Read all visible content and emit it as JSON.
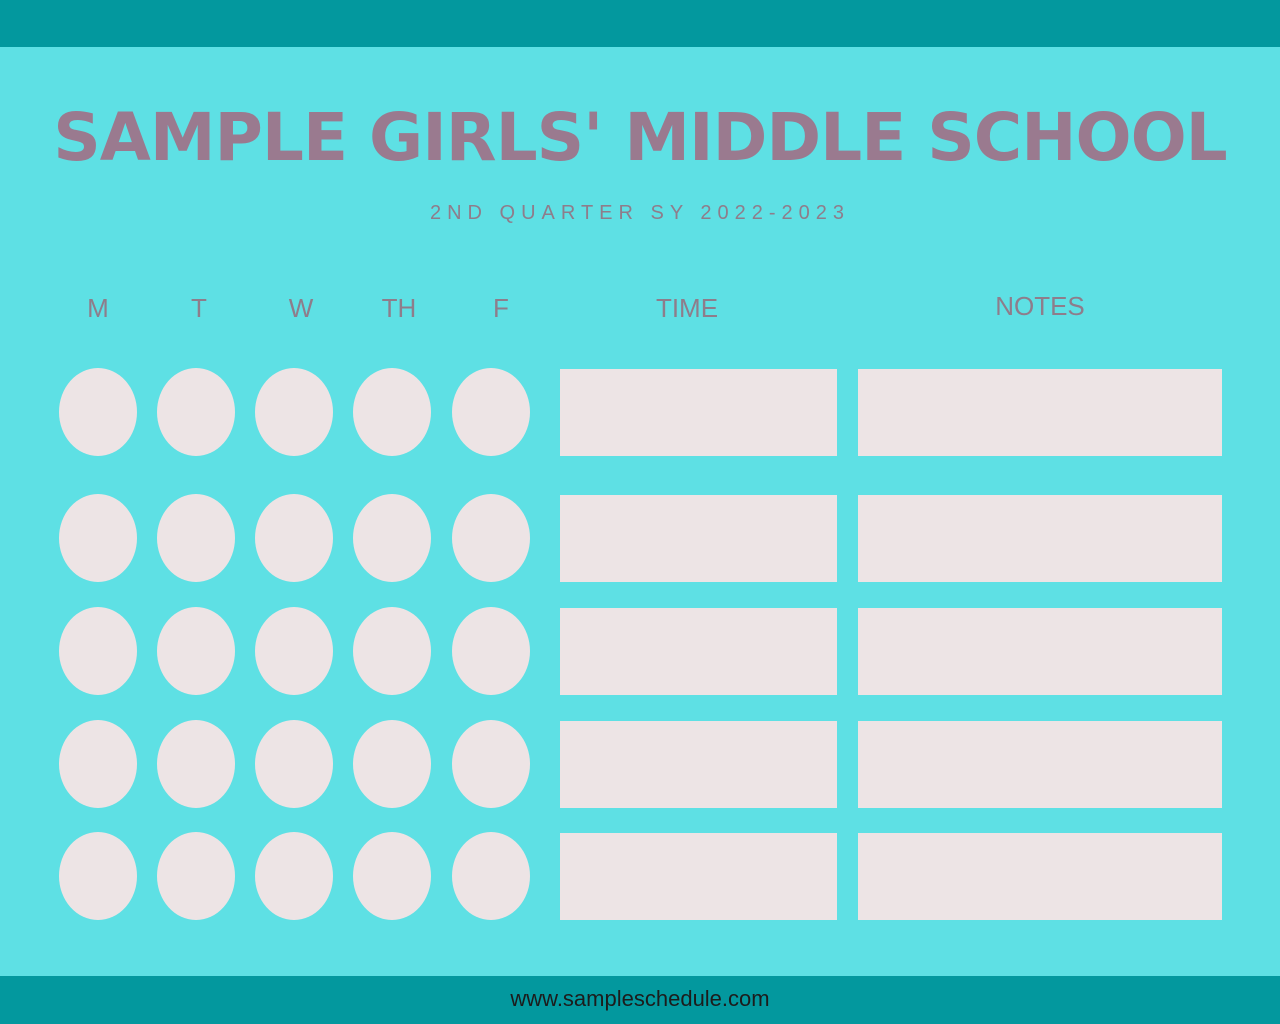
{
  "title": "SAMPLE GIRLS' MIDDLE SCHOOL",
  "subtitle": "2ND QUARTER SY 2022-2023",
  "columns": {
    "days": [
      "M",
      "T",
      "W",
      "TH",
      "F"
    ],
    "time": "TIME",
    "notes": "NOTES"
  },
  "rows": [
    {
      "days": [
        "",
        "",
        "",
        "",
        ""
      ],
      "time": "",
      "notes": ""
    },
    {
      "days": [
        "",
        "",
        "",
        "",
        ""
      ],
      "time": "",
      "notes": ""
    },
    {
      "days": [
        "",
        "",
        "",
        "",
        ""
      ],
      "time": "",
      "notes": ""
    },
    {
      "days": [
        "",
        "",
        "",
        "",
        ""
      ],
      "time": "",
      "notes": ""
    },
    {
      "days": [
        "",
        "",
        "",
        "",
        ""
      ],
      "time": "",
      "notes": ""
    }
  ],
  "footer": {
    "url": "www.sampleschedule.com"
  },
  "colors": {
    "background": "#5ee0e4",
    "band": "#03989e",
    "title": "#9a7a8f",
    "text": "#8e7d8b",
    "cell": "#ede4e5"
  }
}
